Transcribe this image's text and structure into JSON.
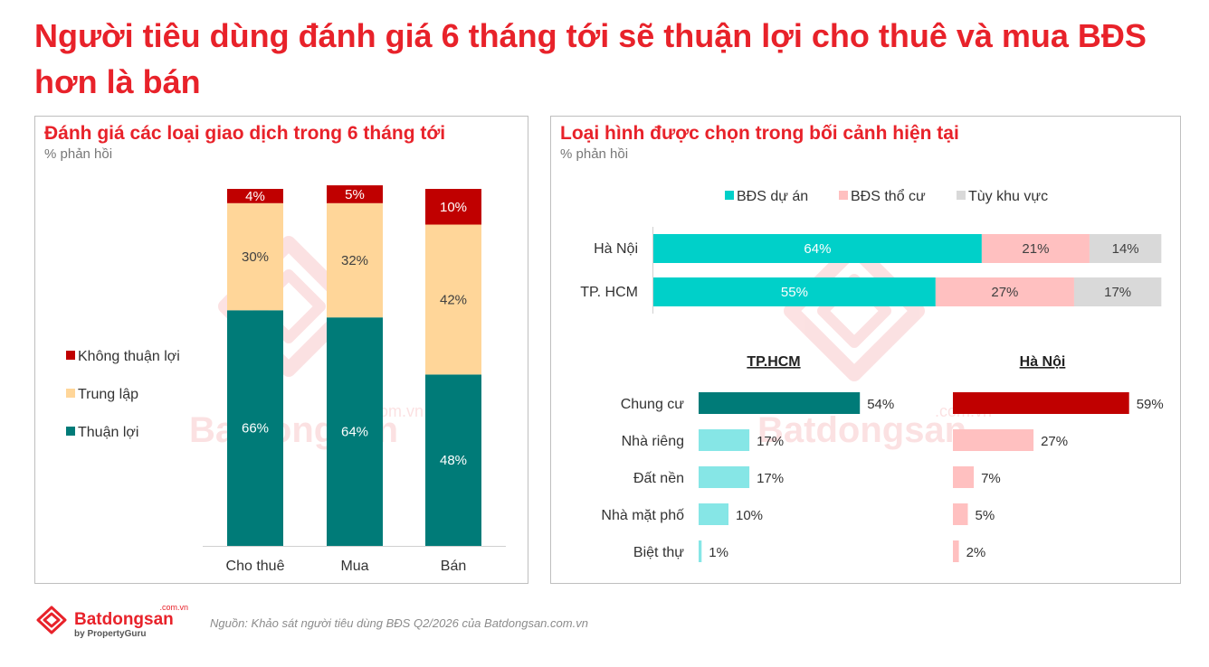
{
  "page": {
    "title": "Người tiêu dùng đánh giá 6 tháng tới sẽ thuận lợi cho thuê và mua BĐS hơn là bán",
    "source_note": "Nguồn: Khảo sát người tiêu dùng BĐS Q2/2026 của Batdongsan.com.vn",
    "logo": {
      "name": "Batdongsan",
      "domain": ".com.vn",
      "tagline": "by PropertyGuru"
    },
    "watermark": {
      "name": "Batdongsan",
      "domain": ".com.vn"
    }
  },
  "colors": {
    "red": "#c00000",
    "amber": "#ffd699",
    "teal": "#007b78",
    "cyan": "#00d0c9",
    "pink": "#ffc0c0",
    "grey": "#d9d9d9",
    "light_cyan": "#86e6e6",
    "title_red": "#e8222a"
  },
  "left_panel": {
    "title": "Đánh giá các loại giao dịch trong 6 tháng tới",
    "subtitle": "% phản hồi"
  },
  "right_panel": {
    "title": "Loại hình được chọn trong bối cảnh hiện tại",
    "subtitle": "% phản hồi"
  },
  "chart_data": [
    {
      "type": "bar",
      "stacked": true,
      "categories": [
        "Cho thuê",
        "Mua",
        "Bán"
      ],
      "series": [
        {
          "name": "Thuận lợi",
          "values": [
            66,
            64,
            48
          ],
          "color": "#007b78"
        },
        {
          "name": "Trung lập",
          "values": [
            30,
            32,
            42
          ],
          "color": "#ffd699"
        },
        {
          "name": "Không thuận lợi",
          "values": [
            4,
            5,
            10
          ],
          "color": "#c00000"
        }
      ],
      "value_suffix": "%",
      "legend": "left",
      "ylim": [
        0,
        100
      ],
      "grid": false
    },
    {
      "type": "bar",
      "orientation": "horizontal",
      "stacked": true,
      "categories": [
        "Hà Nội",
        "TP. HCM"
      ],
      "series": [
        {
          "name": "BĐS dự án",
          "values": [
            64,
            55
          ],
          "color": "#00d0c9"
        },
        {
          "name": "BĐS thổ cư",
          "values": [
            21,
            27
          ],
          "color": "#ffc0c0"
        },
        {
          "name": "Tùy  khu vực",
          "values": [
            14,
            17
          ],
          "color": "#d9d9d9"
        }
      ],
      "value_suffix": "%",
      "legend": "top",
      "xlim": [
        0,
        100
      ]
    },
    {
      "type": "bar",
      "orientation": "horizontal",
      "title": "TP.HCM",
      "categories": [
        "Chung cư",
        "Nhà riêng",
        "Đất nền",
        "Nhà mặt phố",
        "Biệt thự"
      ],
      "values": [
        54,
        17,
        17,
        10,
        1
      ],
      "highlight_color": "#007b78",
      "color": "#86e6e6",
      "value_suffix": "%"
    },
    {
      "type": "bar",
      "orientation": "horizontal",
      "title": "Hà Nội",
      "categories": [
        "Chung cư",
        "Nhà riêng",
        "Đất nền",
        "Nhà mặt phố",
        "Biệt thự"
      ],
      "values": [
        59,
        27,
        7,
        5,
        2
      ],
      "highlight_color": "#c00000",
      "color": "#ffc0c0",
      "value_suffix": "%"
    }
  ]
}
